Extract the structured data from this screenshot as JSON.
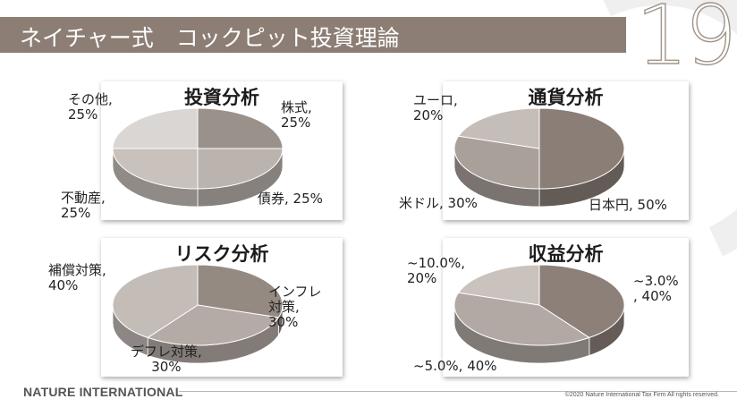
{
  "header": {
    "title": "ネイチャー式　コックピット投資理論",
    "page_number": "19"
  },
  "footer": {
    "brand": "NATURE INTERNATIONAL",
    "copyright": "©2020 Nature International Tax Firm All rights reserved."
  },
  "chart_data": [
    {
      "type": "pie",
      "title": "投資分析",
      "slices": [
        {
          "label": "株式,\n25%",
          "value": 25,
          "color": "#9a918b"
        },
        {
          "label": "債券, 25%",
          "value": 25,
          "color": "#bbb3ae"
        },
        {
          "label": "不動産,\n25%",
          "value": 25,
          "color": "#c8c1bc"
        },
        {
          "label": "その他,\n25%",
          "value": 25,
          "color": "#dad6d3"
        }
      ]
    },
    {
      "type": "pie",
      "title": "通貨分析",
      "slices": [
        {
          "label": "日本円, 50%",
          "value": 50,
          "color": "#8a7e76"
        },
        {
          "label": "米ドル, 30%",
          "value": 30,
          "color": "#a9a09a"
        },
        {
          "label": "ユーロ,\n20%",
          "value": 20,
          "color": "#c5bdb8"
        }
      ]
    },
    {
      "type": "pie",
      "title": "リスク分析",
      "slices": [
        {
          "label": "インフレ\n対策,\n30%",
          "value": 30,
          "color": "#958a82"
        },
        {
          "label": "デフレ対策,\n30%",
          "value": 30,
          "color": "#b4aba6"
        },
        {
          "label": "補償対策,\n40%",
          "value": 40,
          "color": "#c3bcb7"
        }
      ]
    },
    {
      "type": "pie",
      "title": "収益分析",
      "slices": [
        {
          "label": "~3.0%\n, 40%",
          "value": 40,
          "color": "#8c8079"
        },
        {
          "label": "~5.0%, 40%",
          "value": 40,
          "color": "#b2a9a4"
        },
        {
          "label": "~10.0%,\n20%",
          "value": 20,
          "color": "#c9c2bd"
        }
      ]
    }
  ]
}
